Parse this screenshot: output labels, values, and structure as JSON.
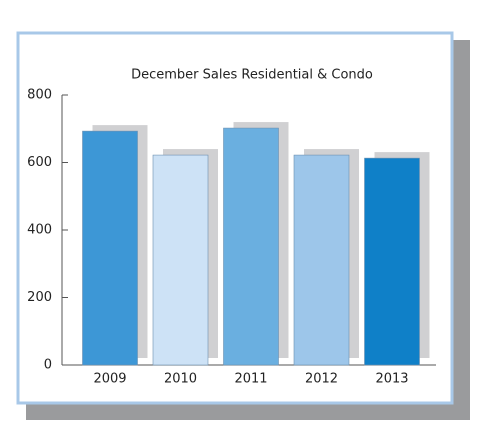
{
  "chart_data": {
    "type": "bar",
    "title": "December Sales Residential & Condo",
    "categories": [
      "2009",
      "2010",
      "2011",
      "2012",
      "2013"
    ],
    "values": [
      693,
      622,
      702,
      622,
      613
    ],
    "colors": [
      "#3d97d6",
      "#cde2f6",
      "#6aafe0",
      "#9dc6ea",
      "#0f80c8"
    ],
    "shadow_color": "#d0d0d2",
    "ylim": [
      0,
      800
    ],
    "yticks": [
      0,
      200,
      400,
      600,
      800
    ],
    "grid": false
  }
}
